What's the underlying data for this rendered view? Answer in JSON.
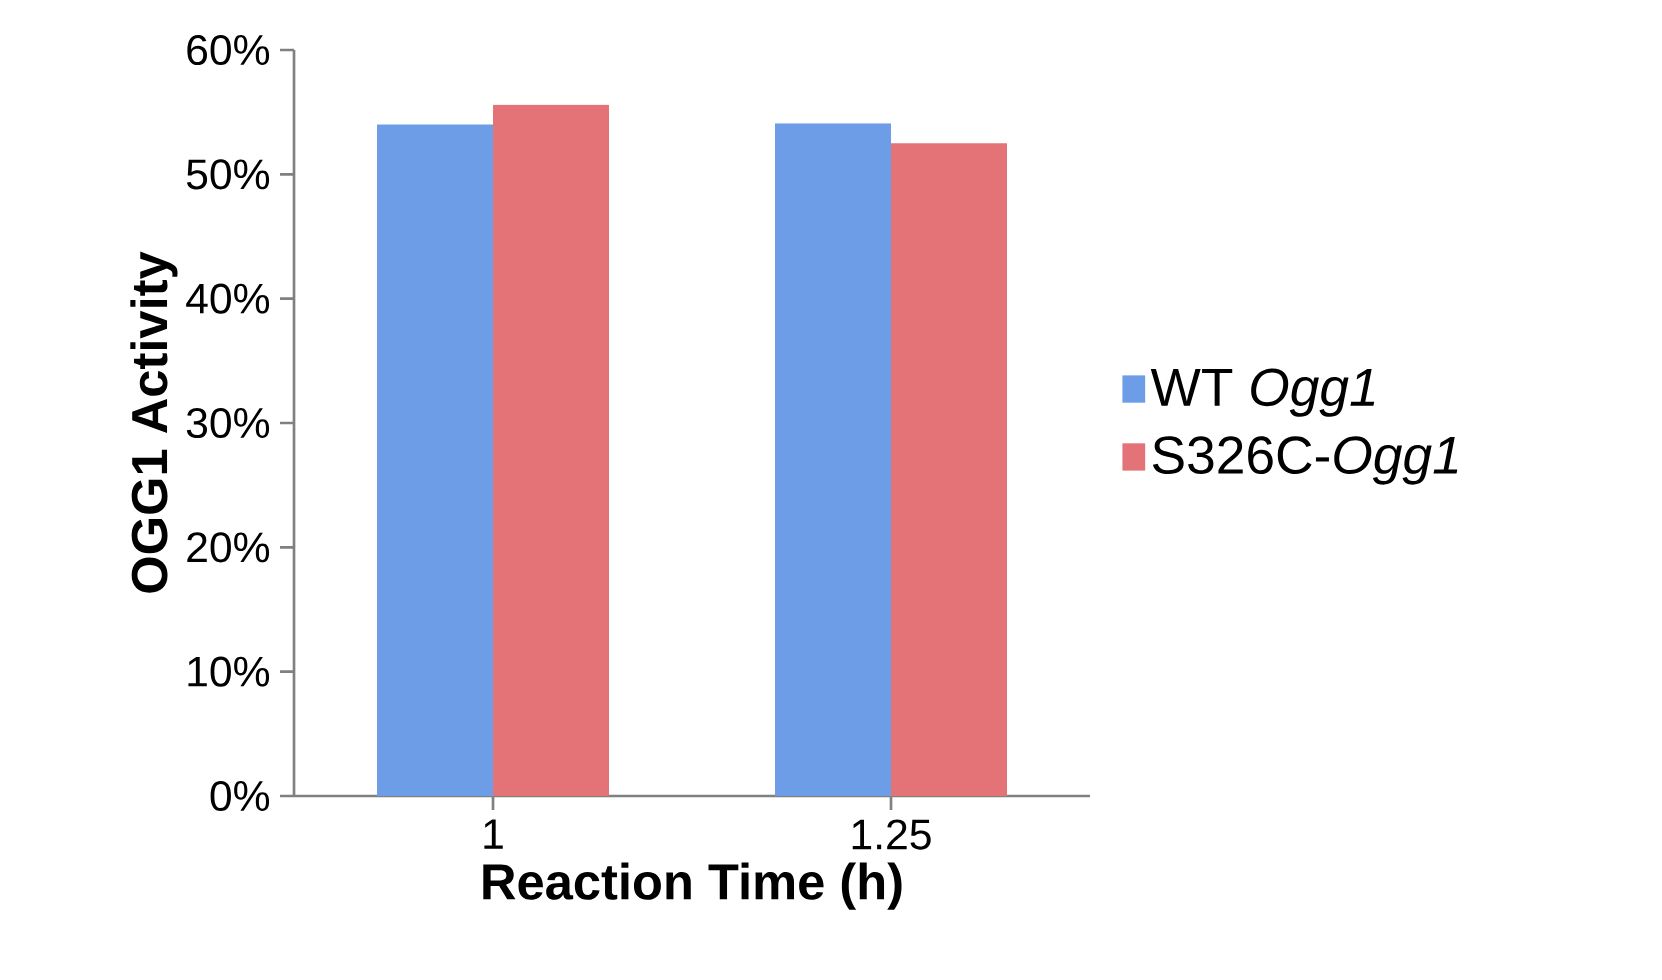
{
  "chart_data": {
    "type": "bar",
    "xlabel": "Reaction Time (h)",
    "ylabel": "OGG1 Activity",
    "categories": [
      "1",
      "1.25"
    ],
    "series": [
      {
        "name": "WT *Ogg1*",
        "color": "#6d9de6",
        "values": [
          54.0,
          54.1
        ]
      },
      {
        "name": "S326C-*Ogg1*",
        "color": "#e37376",
        "values": [
          55.6,
          52.5
        ]
      }
    ],
    "ylim": [
      0,
      60
    ],
    "yticks": [
      {
        "value": 0,
        "label": "0%"
      },
      {
        "value": 10,
        "label": "10%"
      },
      {
        "value": 20,
        "label": "20%"
      },
      {
        "value": 30,
        "label": "30%"
      },
      {
        "value": 40,
        "label": "40%"
      },
      {
        "value": 50,
        "label": "50%"
      },
      {
        "value": 60,
        "label": "60%"
      }
    ],
    "grid": false,
    "legend": "right"
  }
}
